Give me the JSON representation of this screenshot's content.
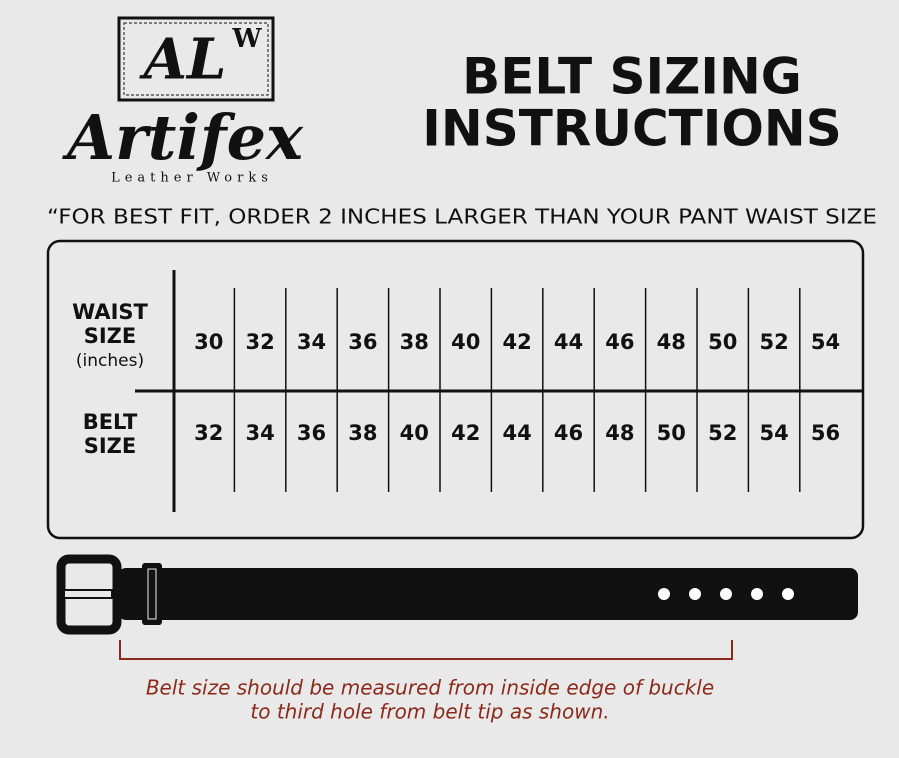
{
  "logo": {
    "mark": "AL",
    "mark_superscript": "W",
    "name": "Artifex",
    "tagline": "Leather Works"
  },
  "title": [
    "BELT SIZING",
    "INSTRUCTIONS"
  ],
  "note": "“FOR BEST FIT, ORDER 2 INCHES LARGER THAN YOUR PANT WAIST SIZE",
  "table": {
    "row_headers": [
      {
        "label": [
          "WAIST",
          "SIZE"
        ],
        "unit": "(inches)"
      },
      {
        "label": [
          "BELT",
          "SIZE"
        ]
      }
    ],
    "rows": [
      [
        30,
        32,
        34,
        36,
        38,
        40,
        42,
        44,
        46,
        48,
        50,
        52,
        54
      ],
      [
        32,
        34,
        36,
        38,
        40,
        42,
        44,
        46,
        48,
        50,
        52,
        54,
        56
      ]
    ]
  },
  "caption": [
    "Belt size should be measured from inside edge of buckle",
    "to third hole from belt tip as shown."
  ]
}
